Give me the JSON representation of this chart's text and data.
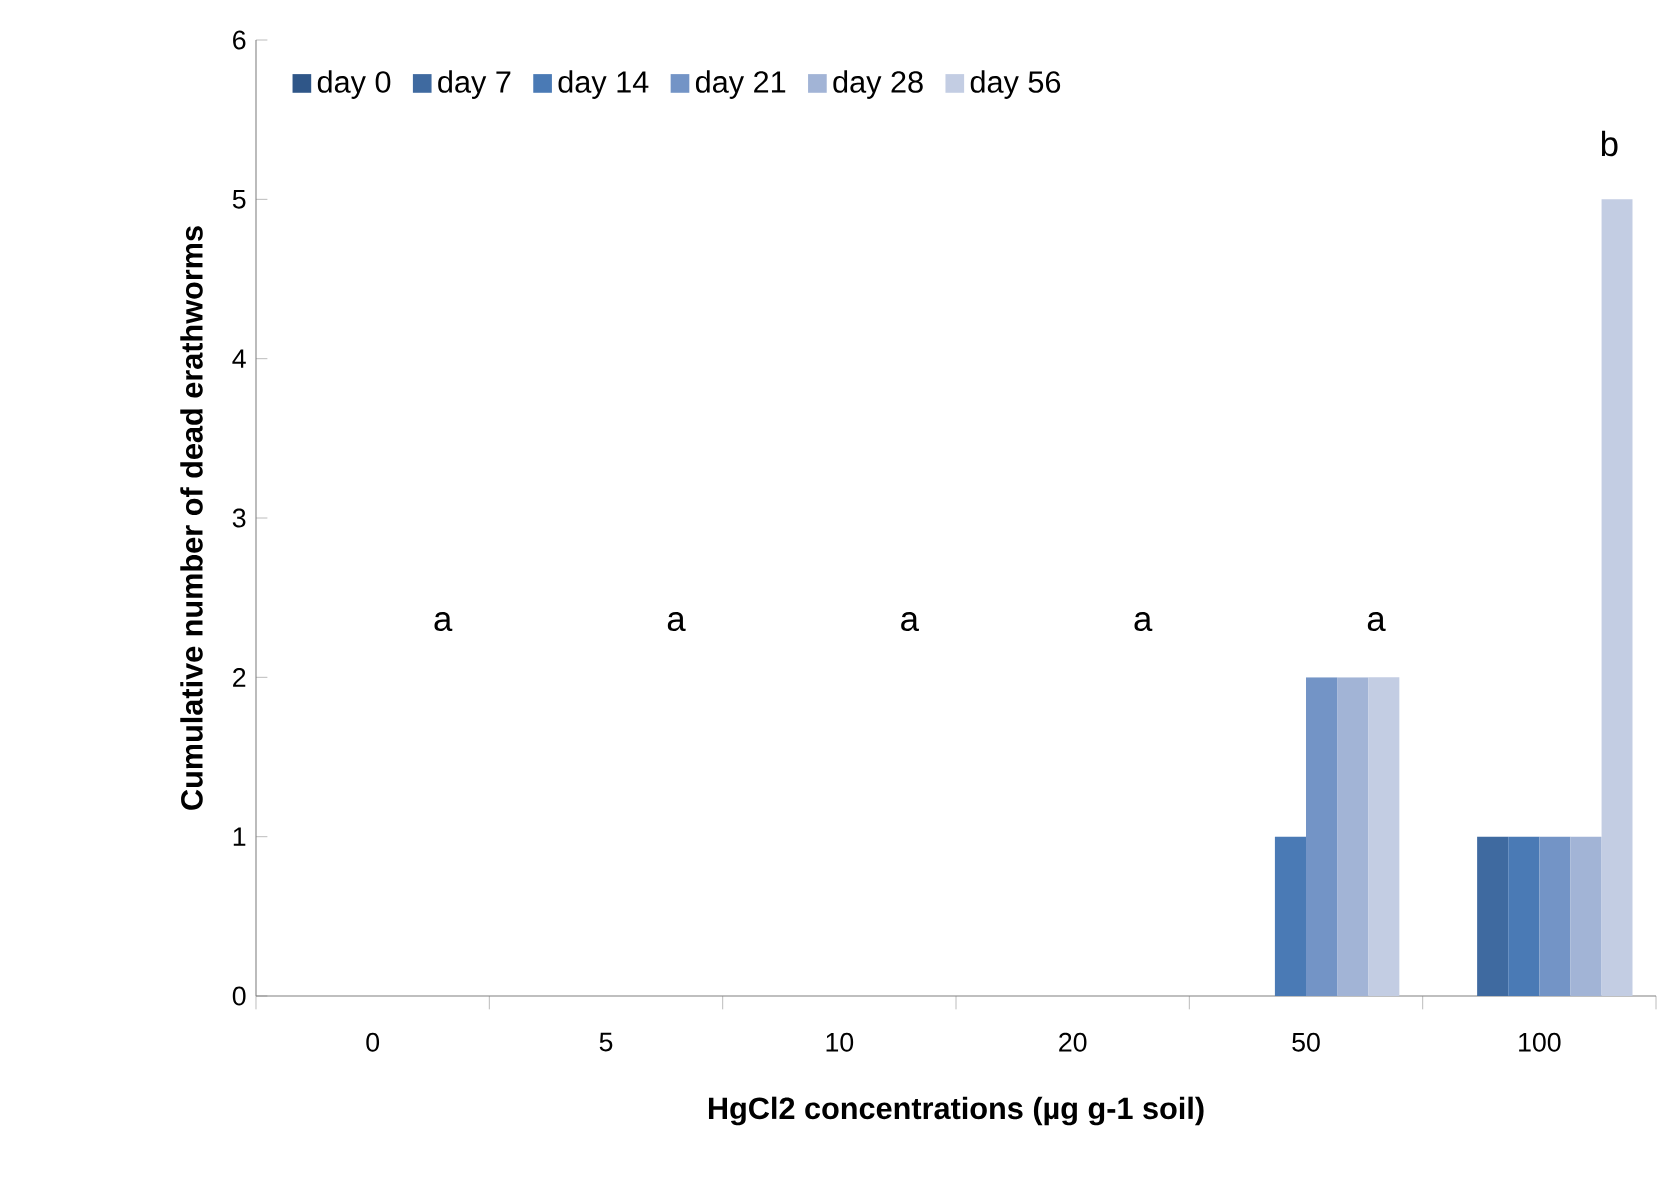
{
  "chart_data": {
    "type": "bar",
    "xlabel": "HgCl2 concentrations (µg g-1 soil)",
    "ylabel": "Cumulative number of dead erathworms",
    "categories": [
      "0",
      "5",
      "10",
      "20",
      "50",
      "100"
    ],
    "series": [
      {
        "name": "day 0",
        "color": "#2f5688",
        "values": [
          0,
          0,
          0,
          0,
          0,
          0
        ]
      },
      {
        "name": "day 7",
        "color": "#3f6aa0",
        "values": [
          0,
          0,
          0,
          0,
          0,
          1
        ]
      },
      {
        "name": "day 14",
        "color": "#4a7ab5",
        "values": [
          0,
          0,
          0,
          0,
          1,
          1
        ]
      },
      {
        "name": "day 21",
        "color": "#7394c6",
        "values": [
          0,
          0,
          0,
          0,
          2,
          1
        ]
      },
      {
        "name": "day 28",
        "color": "#a2b4d6",
        "values": [
          0,
          0,
          0,
          0,
          2,
          1
        ]
      },
      {
        "name": "day 56",
        "color": "#c3cde3",
        "values": [
          0,
          0,
          0,
          0,
          2,
          5
        ]
      }
    ],
    "ylim": [
      0,
      6
    ],
    "yticks": [
      0,
      1,
      2,
      3,
      4,
      5,
      6
    ],
    "grid": false,
    "legend": "top left",
    "annotations": [
      "a",
      "a",
      "a",
      "a",
      "a",
      "b"
    ]
  }
}
